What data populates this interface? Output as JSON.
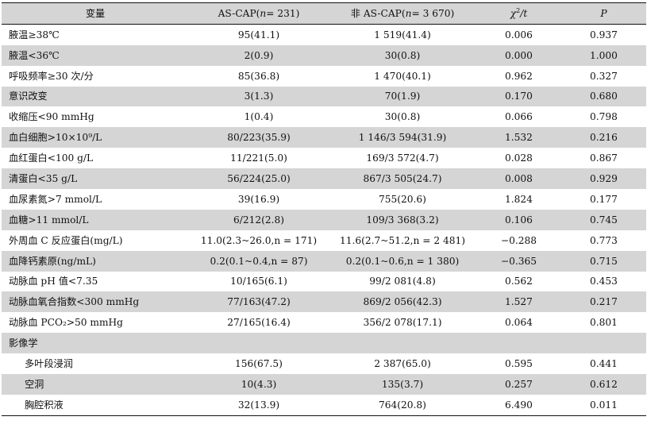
{
  "header": {
    "variable": "变量",
    "as_cap_prefix": "AS-CAP(",
    "as_cap_n_label": "n",
    "as_cap_n_value": "= 231)",
    "non_as_cap_prefix": "非 AS-CAP(",
    "non_as_cap_n_label": "n",
    "non_as_cap_n_value": "= 3 670)",
    "chi_symbol": "χ",
    "chi_sup": "2",
    "stat_rest": "/t",
    "p_label": "P"
  },
  "rows": [
    {
      "label": "腋温≥38℃",
      "as": "95(41.1)",
      "non": "1 519(41.4)",
      "stat": "0.006",
      "p": "0.937"
    },
    {
      "label": "腋温<36℃",
      "as": "2(0.9)",
      "non": "30(0.8)",
      "stat": "0.000",
      "p": "1.000"
    },
    {
      "label": "呼吸频率≥30 次/分",
      "as": "85(36.8)",
      "non": "1 470(40.1)",
      "stat": "0.962",
      "p": "0.327"
    },
    {
      "label": "意识改变",
      "as": "3(1.3)",
      "non": "70(1.9)",
      "stat": "0.170",
      "p": "0.680"
    },
    {
      "label": "收缩压<90 mmHg",
      "as": "1(0.4)",
      "non": "30(0.8)",
      "stat": "0.066",
      "p": "0.798"
    },
    {
      "label": "血白细胞>10×10⁹/L",
      "as": "80/223(35.9)",
      "non": "1 146/3 594(31.9)",
      "stat": "1.532",
      "p": "0.216"
    },
    {
      "label": "血红蛋白<100 g/L",
      "as": "11/221(5.0)",
      "non": "169/3 572(4.7)",
      "stat": "0.028",
      "p": "0.867"
    },
    {
      "label": "清蛋白<35 g/L",
      "as": "56/224(25.0)",
      "non": "867/3 505(24.7)",
      "stat": "0.008",
      "p": "0.929"
    },
    {
      "label": "血尿素氮>7 mmol/L",
      "as": "39(16.9)",
      "non": "755(20.6)",
      "stat": "1.824",
      "p": "0.177"
    },
    {
      "label": "血糖>11 mmol/L",
      "as": "6/212(2.8)",
      "non": "109/3 368(3.2)",
      "stat": "0.106",
      "p": "0.745"
    },
    {
      "label": "外周血 C 反应蛋白(mg/L)",
      "as": "11.0(2.3~26.0,n = 171)",
      "non": "11.6(2.7~51.2,n = 2 481)",
      "stat": "−0.288",
      "p": "0.773"
    },
    {
      "label": "血降钙素原(ng/mL)",
      "as": "0.2(0.1~0.4,n = 87)",
      "non": "0.2(0.1~0.6,n = 1 380)",
      "stat": "−0.365",
      "p": "0.715"
    },
    {
      "label": "动脉血 pH 值<7.35",
      "as": "10/165(6.1)",
      "non": "99/2 081(4.8)",
      "stat": "0.562",
      "p": "0.453"
    },
    {
      "label": "动脉血氧合指数<300 mmHg",
      "as": "77/163(47.2)",
      "non": "869/2 056(42.3)",
      "stat": "1.527",
      "p": "0.217"
    },
    {
      "label": "动脉血 PCO₂>50 mmHg",
      "as": "27/165(16.4)",
      "non": "356/2 078(17.1)",
      "stat": "0.064",
      "p": "0.801"
    },
    {
      "label": "影像学",
      "as": "",
      "non": "",
      "stat": "",
      "p": ""
    },
    {
      "label": "多叶段浸润",
      "as": "156(67.5)",
      "non": "2 387(65.0)",
      "stat": "0.595",
      "p": "0.441"
    },
    {
      "label": "空洞",
      "as": "10(4.3)",
      "non": "135(3.7)",
      "stat": "0.257",
      "p": "0.612"
    },
    {
      "label": "胸腔积液",
      "as": "32(13.9)",
      "non": "764(20.8)",
      "stat": "6.490",
      "p": "0.011"
    }
  ]
}
